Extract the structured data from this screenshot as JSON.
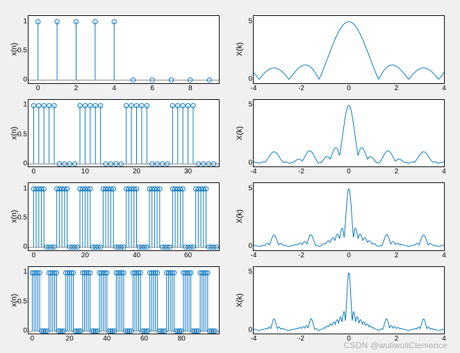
{
  "background_color": "#f0f0f0",
  "plot_bg": "#ffffff",
  "line_color": "#0072bd",
  "axis_color": "#000000",
  "font_family": "Arial",
  "tick_fontsize": 10,
  "label_fontsize": 11,
  "marker_radius": 3.2,
  "watermark": "CSDN @wuliwuliClemence",
  "rows": [
    {
      "stem": {
        "type": "stem",
        "ylabel": "x(n)",
        "xlim": [
          -0.5,
          9.5
        ],
        "ylim": [
          -0.05,
          1.1
        ],
        "xticks": [
          0,
          2,
          4,
          6,
          8
        ],
        "yticks": [
          0,
          0.5,
          1
        ],
        "period": 10,
        "n_periods": 1,
        "high_count": 5
      },
      "spec": {
        "type": "line",
        "ylabel": "X(k)",
        "xlim": [
          -4,
          4
        ],
        "ylim": [
          -0.3,
          5.5
        ],
        "xticks": [
          -4,
          -2,
          0,
          2,
          4
        ],
        "yticks": [
          0,
          5
        ],
        "n_periods": 1
      }
    },
    {
      "stem": {
        "type": "stem",
        "ylabel": "x(n)",
        "xlim": [
          -1,
          36
        ],
        "ylim": [
          -0.05,
          1.1
        ],
        "xticks": [
          0,
          10,
          20,
          30
        ],
        "yticks": [
          0,
          0.5,
          1
        ],
        "period": 9,
        "n_periods": 4,
        "high_count": 5
      },
      "spec": {
        "type": "line",
        "ylabel": "X(k)",
        "xlim": [
          -4,
          4
        ],
        "ylim": [
          -0.3,
          5.5
        ],
        "xticks": [
          -4,
          -2,
          0,
          2,
          4
        ],
        "yticks": [
          0,
          5
        ],
        "n_periods": 4
      }
    },
    {
      "stem": {
        "type": "stem",
        "ylabel": "x(n)",
        "xlim": [
          -2,
          72
        ],
        "ylim": [
          -0.05,
          1.1
        ],
        "xticks": [
          0,
          20,
          40,
          60
        ],
        "yticks": [
          0,
          0.5,
          1
        ],
        "period": 9,
        "n_periods": 8,
        "high_count": 5
      },
      "spec": {
        "type": "line",
        "ylabel": "X(k)",
        "xlim": [
          -4,
          4
        ],
        "ylim": [
          -0.3,
          5.5
        ],
        "xticks": [
          -4,
          -2,
          0,
          2,
          4
        ],
        "yticks": [
          0,
          5
        ],
        "n_periods": 8
      }
    },
    {
      "stem": {
        "type": "stem",
        "ylabel": "x(n)",
        "xlim": [
          -2,
          100
        ],
        "ylim": [
          -0.05,
          1.1
        ],
        "xticks": [
          0,
          20,
          40,
          60,
          80
        ],
        "yticks": [
          0,
          0.5,
          1
        ],
        "period": 9,
        "n_periods": 11,
        "high_count": 5
      },
      "spec": {
        "type": "line",
        "ylabel": "X(k)",
        "xlim": [
          -4,
          4
        ],
        "ylim": [
          -0.3,
          5.5
        ],
        "xticks": [
          -4,
          -2,
          0,
          2,
          4
        ],
        "yticks": [
          0,
          5
        ],
        "n_periods": 11
      }
    }
  ]
}
